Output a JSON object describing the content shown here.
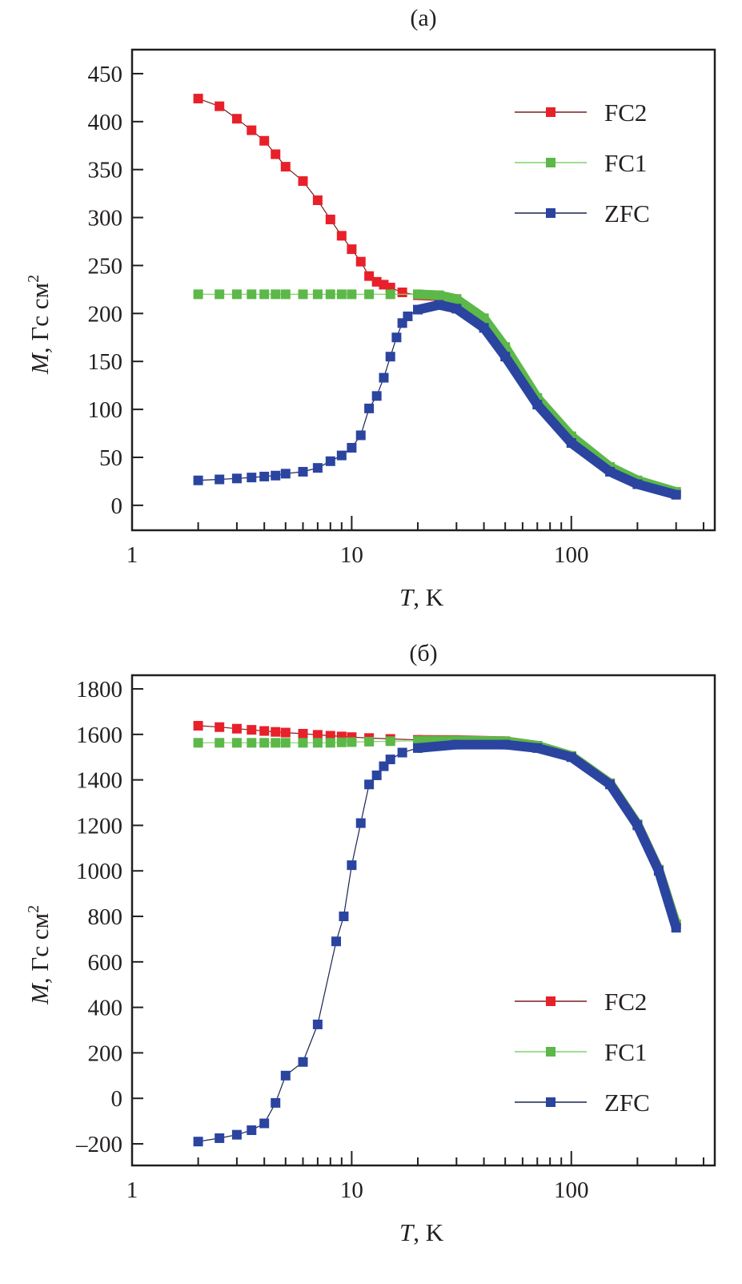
{
  "colors": {
    "FC2": "#e8202a",
    "FC1": "#5cb848",
    "ZFC": "#2a44a0",
    "FC2_line": "#7a1f1f",
    "FC1_line": "#7fd36a",
    "ZFC_line": "#1c2450"
  },
  "chart_data": [
    {
      "type": "scatter",
      "title": "(a)",
      "xlabel_var": "T",
      "xlabel_rest": ", K",
      "ylabel_var": "M",
      "ylabel_rest": ", Гс см",
      "ylabel_sup": "2",
      "xscale": "log",
      "xlim": [
        1,
        450
      ],
      "ylim": [
        -26,
        475
      ],
      "xticks": [
        1,
        10,
        100
      ],
      "xtick_labels": [
        "1",
        "10",
        "100"
      ],
      "yticks": [
        0,
        50,
        100,
        150,
        200,
        250,
        300,
        350,
        400,
        450
      ],
      "ytick_labels": [
        "0",
        "50",
        "100",
        "150",
        "200",
        "250",
        "300",
        "350",
        "400",
        "450"
      ],
      "grid": false,
      "legend": "top-right",
      "series": [
        {
          "name": "FC2",
          "x": [
            2,
            2.5,
            3,
            3.5,
            4,
            4.5,
            5,
            6,
            7,
            8,
            9,
            10,
            11,
            12,
            13,
            14,
            15,
            17,
            20,
            25,
            30,
            40,
            50,
            70,
            100,
            150,
            200,
            300
          ],
          "y": [
            424,
            416,
            403,
            391,
            380,
            366,
            353,
            338,
            318,
            298,
            281,
            267,
            254,
            239,
            233,
            230,
            227,
            222,
            219,
            218,
            215,
            193,
            163,
            110,
            70,
            38,
            25,
            13
          ]
        },
        {
          "name": "FC1",
          "x": [
            2,
            2.5,
            3,
            3.5,
            4,
            4.5,
            5,
            6,
            7,
            8,
            9,
            10,
            12,
            15,
            20,
            25,
            30,
            40,
            50,
            70,
            100,
            150,
            200,
            300
          ],
          "y": [
            220,
            220,
            220,
            220,
            220,
            220,
            220,
            220,
            220,
            220,
            220,
            220,
            220,
            220,
            220,
            219,
            215,
            195,
            165,
            112,
            72,
            40,
            26,
            14
          ]
        },
        {
          "name": "ZFC",
          "x": [
            2,
            2.5,
            3,
            3.5,
            4,
            4.5,
            5,
            6,
            7,
            8,
            9,
            10,
            11,
            12,
            13,
            14,
            15,
            16,
            17,
            18,
            20,
            25,
            30,
            40,
            50,
            70,
            100,
            150,
            200,
            300
          ],
          "y": [
            26,
            27,
            28,
            29,
            30,
            31,
            33,
            35,
            39,
            46,
            52,
            60,
            73,
            101,
            114,
            133,
            155,
            175,
            190,
            197,
            204,
            209,
            205,
            185,
            155,
            105,
            65,
            35,
            22,
            11
          ]
        }
      ]
    },
    {
      "type": "scatter",
      "title": "(б)",
      "xlabel_var": "T",
      "xlabel_rest": ", K",
      "ylabel_var": "M",
      "ylabel_rest": ", Гс см",
      "ylabel_sup": "2",
      "xscale": "log",
      "xlim": [
        1,
        450
      ],
      "ylim": [
        -295,
        1860
      ],
      "xticks": [
        1,
        10,
        100
      ],
      "xtick_labels": [
        "1",
        "10",
        "100"
      ],
      "yticks": [
        -200,
        0,
        200,
        400,
        600,
        800,
        1000,
        1200,
        1400,
        1600,
        1800
      ],
      "ytick_labels": [
        "–200",
        "0",
        "200",
        "400",
        "600",
        "800",
        "1000",
        "1200",
        "1400",
        "1600",
        "1800"
      ],
      "grid": false,
      "legend": "bottom-right",
      "series": [
        {
          "name": "FC2",
          "x": [
            2,
            2.5,
            3,
            3.5,
            4,
            4.5,
            5,
            6,
            7,
            8,
            9,
            10,
            12,
            15,
            20,
            30,
            50,
            70,
            100,
            150,
            200,
            250,
            300
          ],
          "y": [
            1638,
            1632,
            1625,
            1620,
            1615,
            1611,
            1608,
            1603,
            1598,
            1594,
            1591,
            1588,
            1584,
            1580,
            1576,
            1575,
            1570,
            1550,
            1505,
            1385,
            1205,
            1005,
            765
          ]
        },
        {
          "name": "FC1",
          "x": [
            2,
            2.5,
            3,
            3.5,
            4,
            4.5,
            5,
            6,
            7,
            8,
            9,
            10,
            12,
            15,
            20,
            30,
            50,
            70,
            100,
            150,
            200,
            250,
            300
          ],
          "y": [
            1563,
            1563,
            1563,
            1563,
            1563,
            1563,
            1563,
            1563,
            1563,
            1563,
            1565,
            1566,
            1568,
            1570,
            1572,
            1573,
            1570,
            1550,
            1505,
            1385,
            1205,
            1005,
            765
          ]
        },
        {
          "name": "ZFC",
          "x": [
            2,
            2.5,
            3,
            3.5,
            4,
            4.5,
            5,
            6,
            7,
            8.5,
            9.2,
            10,
            11,
            12,
            13,
            14,
            15,
            17,
            20,
            30,
            50,
            70,
            100,
            150,
            200,
            250,
            300
          ],
          "y": [
            -190,
            -175,
            -160,
            -140,
            -110,
            -20,
            100,
            160,
            325,
            690,
            800,
            1025,
            1210,
            1380,
            1420,
            1460,
            1490,
            1520,
            1540,
            1555,
            1555,
            1540,
            1500,
            1380,
            1200,
            1000,
            750
          ]
        }
      ]
    }
  ]
}
